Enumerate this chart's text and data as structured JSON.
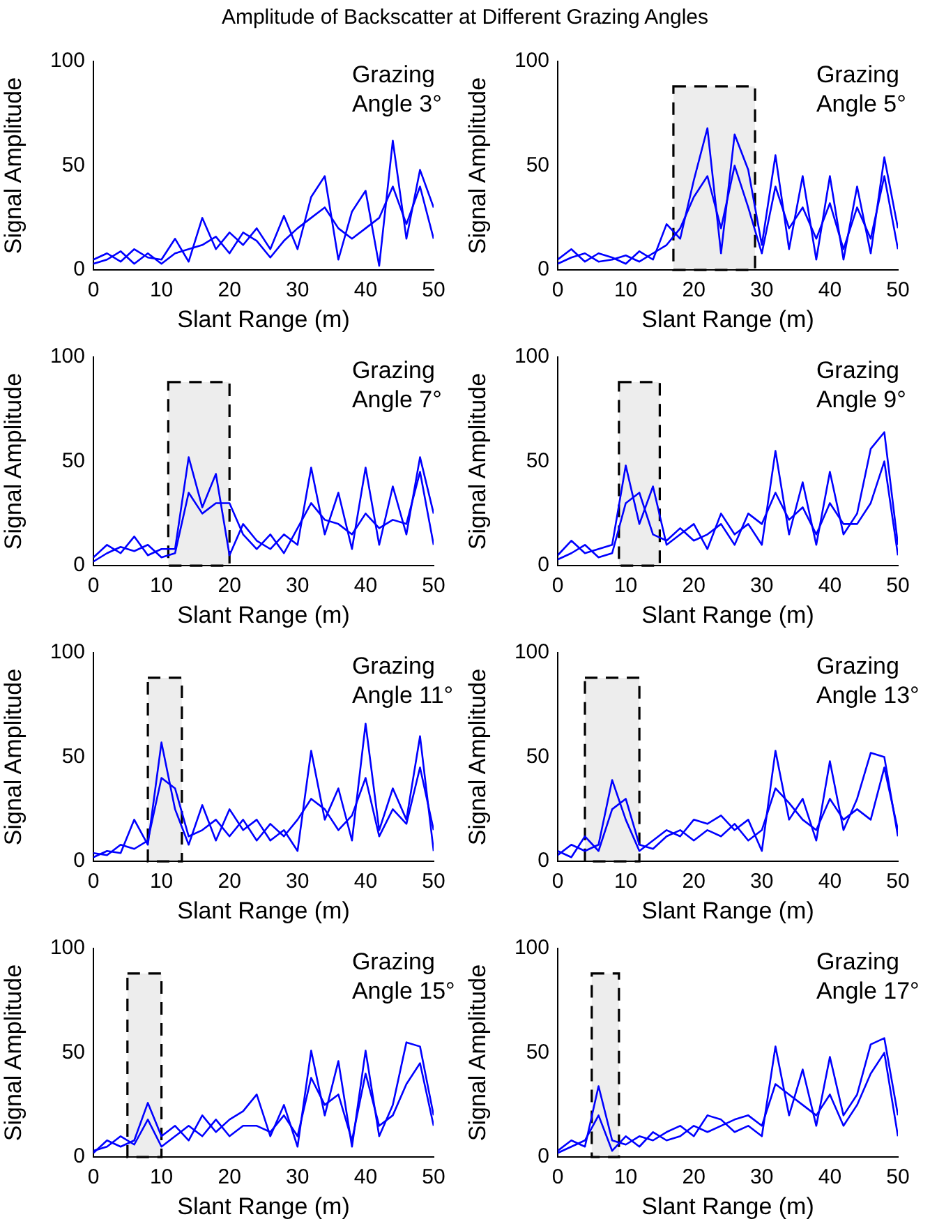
{
  "chart_data": [
    {
      "type": "line",
      "title": "Amplitude of Backscatter at Different Grazing Angles",
      "xlabel": "Slant Range (m)",
      "ylabel": "Signal Amplitude",
      "annotations": [
        "Grazing\nAngle 3°"
      ],
      "x": [
        0,
        2,
        4,
        6,
        8,
        10,
        12,
        14,
        16,
        18,
        20,
        22,
        24,
        26,
        28,
        30,
        32,
        34,
        36,
        38,
        40,
        42,
        44,
        46,
        48,
        50
      ],
      "series": [
        {
          "color": "#0000ff",
          "values": [
            5,
            8,
            4,
            10,
            6,
            5,
            15,
            4,
            25,
            10,
            18,
            12,
            20,
            10,
            26,
            10,
            35,
            45,
            5,
            28,
            38,
            2,
            62,
            15,
            48,
            30
          ]
        },
        {
          "color": "#0000ff",
          "values": [
            3,
            5,
            9,
            3,
            8,
            3,
            8,
            10,
            12,
            16,
            8,
            18,
            14,
            6,
            14,
            20,
            25,
            30,
            20,
            15,
            20,
            25,
            40,
            22,
            40,
            15
          ]
        }
      ],
      "xlim": [
        0,
        50
      ],
      "xticks": [
        0,
        10,
        20,
        30,
        40,
        50
      ],
      "ylim": [
        0,
        100
      ],
      "yticks": [
        0,
        50,
        100
      ]
    },
    {
      "type": "line",
      "xlabel": "Slant Range (m)",
      "ylabel": "Signal Amplitude",
      "annotations": [
        "Grazing\nAngle 5°"
      ],
      "x": [
        0,
        2,
        4,
        6,
        8,
        10,
        12,
        14,
        16,
        18,
        20,
        22,
        24,
        26,
        28,
        30,
        32,
        34,
        36,
        38,
        40,
        42,
        44,
        46,
        48,
        50
      ],
      "series": [
        {
          "color": "#0000ff",
          "values": [
            5,
            10,
            4,
            8,
            6,
            3,
            9,
            5,
            22,
            15,
            43,
            68,
            8,
            65,
            48,
            12,
            55,
            10,
            45,
            5,
            45,
            5,
            40,
            8,
            54,
            20
          ]
        },
        {
          "color": "#0000ff",
          "values": [
            3,
            6,
            8,
            4,
            5,
            7,
            4,
            8,
            12,
            20,
            35,
            45,
            20,
            50,
            30,
            8,
            40,
            20,
            30,
            15,
            32,
            10,
            30,
            15,
            45,
            10
          ]
        }
      ],
      "xlim": [
        0,
        50
      ],
      "xticks": [
        0,
        10,
        20,
        30,
        40,
        50
      ],
      "ylim": [
        0,
        100
      ],
      "yticks": [
        0,
        50,
        100
      ],
      "bands": [
        {
          "axis": "x",
          "from": 17,
          "to": 29,
          "color": "#000000"
        }
      ]
    },
    {
      "type": "line",
      "xlabel": "Slant Range (m)",
      "ylabel": "Signal Amplitude",
      "annotations": [
        "Grazing\nAngle 7°"
      ],
      "x": [
        0,
        2,
        4,
        6,
        8,
        10,
        12,
        14,
        16,
        18,
        20,
        22,
        24,
        26,
        28,
        30,
        32,
        34,
        36,
        38,
        40,
        42,
        44,
        46,
        48,
        50
      ],
      "series": [
        {
          "color": "#0000ff",
          "values": [
            4,
            10,
            6,
            14,
            5,
            8,
            8,
            52,
            28,
            44,
            5,
            20,
            12,
            8,
            15,
            10,
            47,
            15,
            35,
            8,
            47,
            10,
            38,
            15,
            52,
            25
          ]
        },
        {
          "color": "#0000ff",
          "values": [
            2,
            6,
            9,
            7,
            10,
            4,
            6,
            35,
            25,
            30,
            30,
            15,
            8,
            15,
            6,
            18,
            30,
            22,
            20,
            15,
            25,
            18,
            22,
            20,
            45,
            10
          ]
        }
      ],
      "xlim": [
        0,
        50
      ],
      "xticks": [
        0,
        10,
        20,
        30,
        40,
        50
      ],
      "ylim": [
        0,
        100
      ],
      "yticks": [
        0,
        50,
        100
      ],
      "bands": [
        {
          "axis": "x",
          "from": 11,
          "to": 20,
          "color": "#000000"
        }
      ]
    },
    {
      "type": "line",
      "xlabel": "Slant Range (m)",
      "ylabel": "Signal Amplitude",
      "annotations": [
        "Grazing\nAngle 9°"
      ],
      "x": [
        0,
        2,
        4,
        6,
        8,
        10,
        12,
        14,
        16,
        18,
        20,
        22,
        24,
        26,
        28,
        30,
        32,
        34,
        36,
        38,
        40,
        42,
        44,
        46,
        48,
        50
      ],
      "series": [
        {
          "color": "#0000ff",
          "values": [
            5,
            12,
            6,
            8,
            10,
            48,
            20,
            38,
            10,
            15,
            20,
            8,
            25,
            15,
            20,
            10,
            55,
            15,
            40,
            10,
            45,
            15,
            25,
            56,
            64,
            10
          ]
        },
        {
          "color": "#0000ff",
          "values": [
            3,
            6,
            10,
            4,
            6,
            30,
            35,
            15,
            12,
            18,
            12,
            15,
            20,
            10,
            25,
            20,
            35,
            22,
            28,
            15,
            30,
            20,
            20,
            30,
            50,
            5
          ]
        }
      ],
      "xlim": [
        0,
        50
      ],
      "xticks": [
        0,
        10,
        20,
        30,
        40,
        50
      ],
      "ylim": [
        0,
        100
      ],
      "yticks": [
        0,
        50,
        100
      ],
      "bands": [
        {
          "axis": "x",
          "from": 9,
          "to": 15,
          "color": "#000000"
        }
      ]
    },
    {
      "type": "line",
      "xlabel": "Slant Range (m)",
      "ylabel": "Signal Amplitude",
      "annotations": [
        "Grazing\nAngle 11°"
      ],
      "x": [
        0,
        2,
        4,
        6,
        8,
        10,
        12,
        14,
        16,
        18,
        20,
        22,
        24,
        26,
        28,
        30,
        32,
        34,
        36,
        38,
        40,
        42,
        44,
        46,
        48,
        50
      ],
      "series": [
        {
          "color": "#0000ff",
          "values": [
            2,
            5,
            4,
            20,
            8,
            57,
            25,
            8,
            27,
            10,
            25,
            15,
            20,
            10,
            15,
            5,
            53,
            20,
            35,
            10,
            66,
            15,
            35,
            20,
            60,
            5
          ]
        },
        {
          "color": "#0000ff",
          "values": [
            4,
            3,
            8,
            6,
            10,
            40,
            35,
            12,
            15,
            20,
            12,
            20,
            10,
            18,
            12,
            20,
            30,
            25,
            15,
            22,
            40,
            12,
            25,
            18,
            45,
            15
          ]
        }
      ],
      "xlim": [
        0,
        50
      ],
      "xticks": [
        0,
        10,
        20,
        30,
        40,
        50
      ],
      "ylim": [
        0,
        100
      ],
      "yticks": [
        0,
        50,
        100
      ],
      "bands": [
        {
          "axis": "x",
          "from": 8,
          "to": 13,
          "color": "#000000"
        }
      ]
    },
    {
      "type": "line",
      "xlabel": "Slant Range (m)",
      "ylabel": "Signal Amplitude",
      "annotations": [
        "Grazing\nAngle 13°"
      ],
      "x": [
        0,
        2,
        4,
        6,
        8,
        10,
        12,
        14,
        16,
        18,
        20,
        22,
        24,
        26,
        28,
        30,
        32,
        34,
        36,
        38,
        40,
        42,
        44,
        46,
        48,
        50
      ],
      "series": [
        {
          "color": "#0000ff",
          "values": [
            3,
            8,
            5,
            8,
            39,
            20,
            5,
            10,
            15,
            12,
            20,
            18,
            22,
            15,
            20,
            5,
            53,
            20,
            30,
            10,
            48,
            15,
            30,
            52,
            50,
            12
          ]
        },
        {
          "color": "#0000ff",
          "values": [
            5,
            2,
            12,
            5,
            25,
            30,
            8,
            6,
            12,
            15,
            10,
            15,
            12,
            18,
            10,
            15,
            35,
            28,
            20,
            15,
            30,
            20,
            25,
            20,
            45,
            15
          ]
        }
      ],
      "xlim": [
        0,
        50
      ],
      "xticks": [
        0,
        10,
        20,
        30,
        40,
        50
      ],
      "ylim": [
        0,
        100
      ],
      "yticks": [
        0,
        50,
        100
      ],
      "bands": [
        {
          "axis": "x",
          "from": 4,
          "to": 12,
          "color": "#000000"
        }
      ]
    },
    {
      "type": "line",
      "xlabel": "Slant Range (m)",
      "ylabel": "Signal Amplitude",
      "annotations": [
        "Grazing\nAngle 15°"
      ],
      "x": [
        0,
        2,
        4,
        6,
        8,
        10,
        12,
        14,
        16,
        18,
        20,
        22,
        24,
        26,
        28,
        30,
        32,
        34,
        36,
        38,
        40,
        42,
        44,
        46,
        48,
        50
      ],
      "series": [
        {
          "color": "#0000ff",
          "values": [
            2,
            8,
            5,
            8,
            26,
            10,
            15,
            8,
            20,
            12,
            18,
            22,
            30,
            10,
            25,
            5,
            51,
            20,
            46,
            5,
            51,
            10,
            25,
            55,
            53,
            20
          ]
        },
        {
          "color": "#0000ff",
          "values": [
            3,
            5,
            10,
            6,
            18,
            5,
            10,
            15,
            10,
            18,
            10,
            15,
            15,
            12,
            20,
            10,
            38,
            25,
            30,
            8,
            40,
            15,
            20,
            35,
            45,
            15
          ]
        }
      ],
      "xlim": [
        0,
        50
      ],
      "xticks": [
        0,
        10,
        20,
        30,
        40,
        50
      ],
      "ylim": [
        0,
        100
      ],
      "yticks": [
        0,
        50,
        100
      ],
      "bands": [
        {
          "axis": "x",
          "from": 5,
          "to": 10,
          "color": "#000000"
        }
      ]
    },
    {
      "type": "line",
      "xlabel": "Slant Range (m)",
      "ylabel": "Signal Amplitude",
      "annotations": [
        "Grazing\nAngle 17°"
      ],
      "x": [
        0,
        2,
        4,
        6,
        8,
        10,
        12,
        14,
        16,
        18,
        20,
        22,
        24,
        26,
        28,
        30,
        32,
        34,
        36,
        38,
        40,
        42,
        44,
        46,
        48,
        50
      ],
      "series": [
        {
          "color": "#0000ff",
          "values": [
            3,
            8,
            5,
            34,
            8,
            6,
            10,
            8,
            12,
            15,
            10,
            20,
            18,
            12,
            15,
            10,
            53,
            20,
            42,
            15,
            48,
            20,
            30,
            54,
            57,
            20
          ]
        },
        {
          "color": "#0000ff",
          "values": [
            2,
            5,
            8,
            20,
            3,
            10,
            5,
            12,
            8,
            10,
            15,
            12,
            15,
            18,
            20,
            15,
            35,
            30,
            25,
            20,
            30,
            15,
            25,
            40,
            50,
            10
          ]
        }
      ],
      "xlim": [
        0,
        50
      ],
      "xticks": [
        0,
        10,
        20,
        30,
        40,
        50
      ],
      "ylim": [
        0,
        100
      ],
      "yticks": [
        0,
        50,
        100
      ],
      "bands": [
        {
          "axis": "x",
          "from": 5,
          "to": 9,
          "color": "#000000"
        }
      ]
    }
  ]
}
